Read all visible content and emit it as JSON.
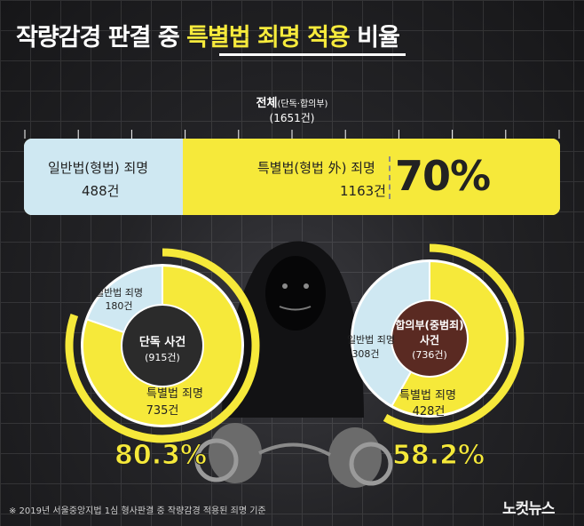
{
  "title": {
    "part1": "작량감경 판결 중 ",
    "highlight": "특별법 죄명 적용",
    "part2": " 비율"
  },
  "chart_data": [
    {
      "type": "bar",
      "title": "전체",
      "subtitle": "(단독·합의부)",
      "total": "(1651건)",
      "segments": [
        {
          "name": "일반법(형법) 죄명",
          "value": 488,
          "label": "488건",
          "color": "#cfe8f2"
        },
        {
          "name": "특별법(형법 外) 죄명",
          "value": 1163,
          "label": "1163건",
          "color": "#f6e93a"
        }
      ],
      "highlight_percent": "70%"
    },
    {
      "type": "pie",
      "title": "단독 사건",
      "total": "(915건)",
      "slices": [
        {
          "name": "일반법 죄명",
          "value": 180,
          "label": "180건",
          "color": "#cfe8f2"
        },
        {
          "name": "특별법 죄명",
          "value": 735,
          "label": "735건",
          "color": "#f6e93a"
        }
      ],
      "percent": "80.3%"
    },
    {
      "type": "pie",
      "title": "합의부(중범죄) 사건",
      "total": "(736건)",
      "slices": [
        {
          "name": "일반법 죄명",
          "value": 308,
          "label": "308건",
          "color": "#cfe8f2"
        },
        {
          "name": "특별법 죄명",
          "value": 428,
          "label": "428건",
          "color": "#f6e93a"
        }
      ],
      "percent": "58.2%"
    }
  ],
  "footnote": "※ 2019년 서울중앙지법 1심 형사판결 중 작량감경 적용된 죄명 기준",
  "logo": "노컷뉴스",
  "colors": {
    "accent": "#f6e93a",
    "general": "#cfe8f2",
    "background": "#1b1b1d"
  }
}
